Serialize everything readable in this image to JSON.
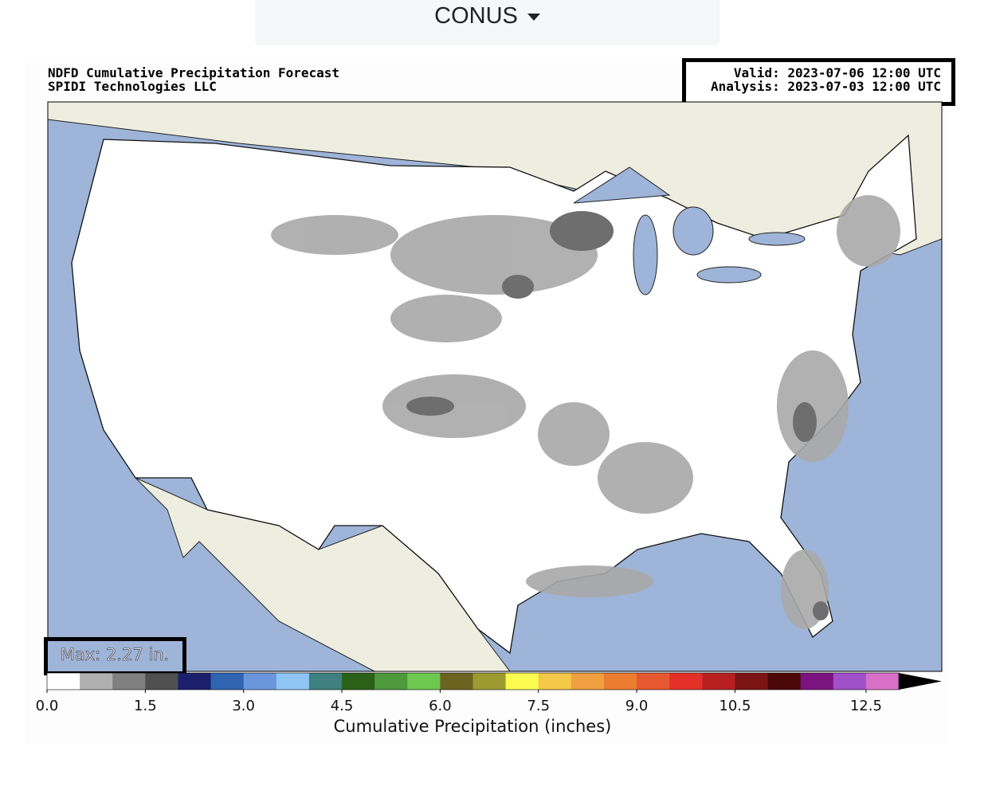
{
  "selector": {
    "label": "CONUS"
  },
  "header": {
    "title": "NDFD Cumulative Precipitation Forecast",
    "company": "SPIDI Technologies LLC",
    "valid": "Valid: 2023-07-06 12:00 UTC",
    "analysis": "Analysis: 2023-07-03 12:00 UTC"
  },
  "max_label": "Max: 2.27 in.",
  "colorbar": {
    "label": "Cumulative Precipitation (inches)",
    "min": 0,
    "max": 13,
    "colors": [
      "#ffffff",
      "#b0b0b0",
      "#808080",
      "#505050",
      "#1c1f6b",
      "#2e64b0",
      "#6b96dd",
      "#8ec5f4",
      "#3e8080",
      "#2a6018",
      "#4e9a3c",
      "#6cc84e",
      "#6b6420",
      "#9c9a30",
      "#fcfc50",
      "#f4c848",
      "#f0a040",
      "#ec7c30",
      "#e85830",
      "#e43028",
      "#b82020",
      "#7c1414",
      "#4c0808",
      "#7c1480",
      "#a050c8",
      "#d870c8"
    ],
    "extend_color": "#000000",
    "ticks": [
      {
        "value": 0,
        "label": "0.0"
      },
      {
        "value": 1.5,
        "label": "1.5"
      },
      {
        "value": 3,
        "label": "3.0"
      },
      {
        "value": 4.5,
        "label": "4.5"
      },
      {
        "value": 6,
        "label": "6.0"
      },
      {
        "value": 7.5,
        "label": "7.5"
      },
      {
        "value": 9,
        "label": "9.0"
      },
      {
        "value": 10.5,
        "label": "10.5"
      },
      {
        "value": 12.5,
        "label": "12.5"
      }
    ]
  }
}
